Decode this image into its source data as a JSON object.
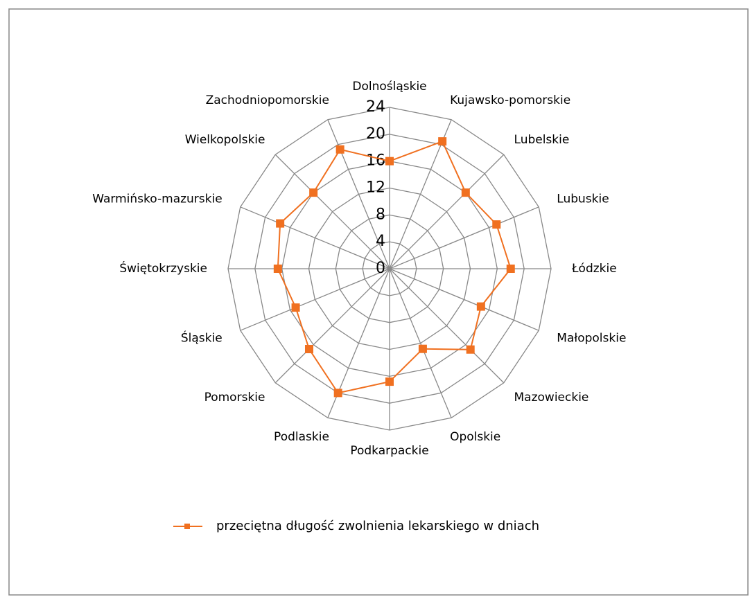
{
  "chart_data": {
    "type": "radar",
    "categories": [
      "Dolnośląskie",
      "Kujawsko-pomorskie",
      "Lubelskie",
      "Lubuskie",
      "Łódzkie",
      "Małopolskie",
      "Mazowieckie",
      "Opolskie",
      "Podkarpackie",
      "Podlaskie",
      "Pomorskie",
      "Śląskie",
      "Świętokrzyskie",
      "Warmińsko-mazurskie",
      "Wielkopolskie",
      "Zachodniopomorskie"
    ],
    "series": [
      {
        "name": "przeciętna długość zwolnienia lekarskiego w dniach",
        "color": "#f07020",
        "values": [
          16,
          20.5,
          16,
          17.2,
          18,
          14.7,
          17,
          12.9,
          16.8,
          20,
          16.9,
          15.1,
          16.6,
          17.6,
          16,
          19.2
        ]
      }
    ],
    "ylim": [
      0,
      24
    ],
    "yticks": [
      0,
      4,
      8,
      12,
      16,
      20,
      24
    ],
    "grid": true,
    "legend": "bottom"
  }
}
